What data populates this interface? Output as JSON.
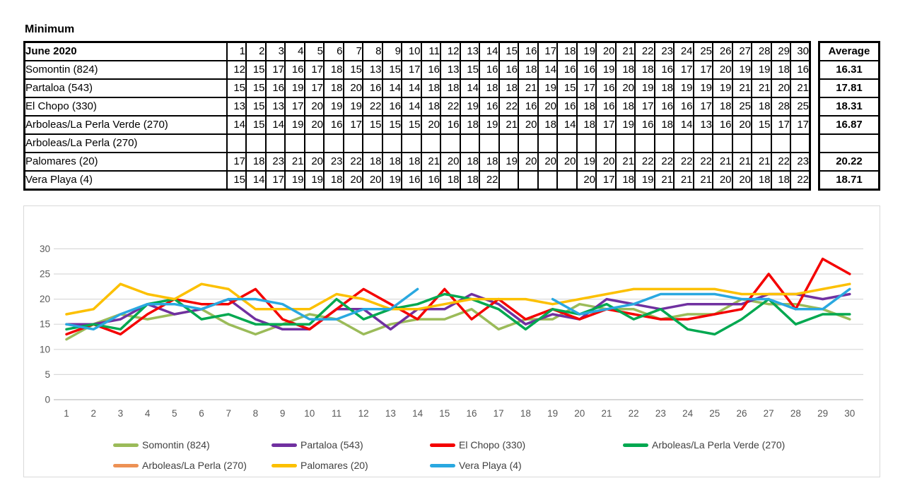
{
  "title": "Minimum",
  "table": {
    "corner_label": "June 2020",
    "day_headers": [
      1,
      2,
      3,
      4,
      5,
      6,
      7,
      8,
      9,
      10,
      11,
      12,
      13,
      14,
      15,
      16,
      17,
      18,
      19,
      20,
      21,
      22,
      23,
      24,
      25,
      26,
      27,
      28,
      29,
      30
    ],
    "average_header": "Average",
    "rows": [
      {
        "name": "Somontin (824)",
        "values": [
          12,
          15,
          17,
          16,
          17,
          18,
          15,
          13,
          15,
          17,
          16,
          13,
          15,
          16,
          16,
          18,
          14,
          16,
          16,
          19,
          18,
          18,
          16,
          17,
          17,
          20,
          19,
          19,
          18,
          16
        ],
        "average": "16.31"
      },
      {
        "name": "Partaloa (543)",
        "values": [
          15,
          15,
          16,
          19,
          17,
          18,
          20,
          16,
          14,
          14,
          18,
          18,
          14,
          18,
          18,
          21,
          19,
          15,
          17,
          16,
          20,
          19,
          18,
          19,
          19,
          19,
          21,
          21,
          20,
          21
        ],
        "average": "17.81"
      },
      {
        "name": "El Chopo (330)",
        "values": [
          13,
          15,
          13,
          17,
          20,
          19,
          19,
          22,
          16,
          14,
          18,
          22,
          19,
          16,
          22,
          16,
          20,
          16,
          18,
          16,
          18,
          17,
          16,
          16,
          17,
          18,
          25,
          18,
          28,
          25
        ],
        "average": "18.31"
      },
      {
        "name": "Arboleas/La Perla Verde (270)",
        "values": [
          14,
          15,
          14,
          19,
          20,
          16,
          17,
          15,
          15,
          15,
          20,
          16,
          18,
          19,
          21,
          20,
          18,
          14,
          18,
          17,
          19,
          16,
          18,
          14,
          13,
          16,
          20,
          15,
          17,
          17
        ],
        "average": "16.87"
      },
      {
        "name": "Arboleas/La Perla (270)",
        "values": [
          null,
          null,
          null,
          null,
          null,
          null,
          null,
          null,
          null,
          null,
          null,
          null,
          null,
          null,
          null,
          null,
          null,
          null,
          null,
          null,
          null,
          null,
          null,
          null,
          null,
          null,
          null,
          null,
          null,
          null
        ],
        "average": null
      },
      {
        "name": "Palomares (20)",
        "values": [
          17,
          18,
          23,
          21,
          20,
          23,
          22,
          18,
          18,
          18,
          21,
          20,
          18,
          18,
          19,
          20,
          20,
          20,
          19,
          20,
          21,
          22,
          22,
          22,
          22,
          21,
          21,
          21,
          22,
          23
        ],
        "average": "20.22"
      },
      {
        "name": "Vera Playa (4)",
        "values": [
          15,
          14,
          17,
          19,
          19,
          18,
          20,
          20,
          19,
          16,
          16,
          18,
          18,
          22,
          null,
          null,
          null,
          null,
          20,
          17,
          18,
          19,
          21,
          21,
          21,
          20,
          20,
          18,
          18,
          22
        ],
        "average": "18.71"
      }
    ]
  },
  "colors": {
    "header_fill": "#FBE3D4",
    "empty_cell_fill": "#D9D9D9",
    "grid_line": "#D9D9D9",
    "zero_line": "#BFBFBF",
    "axis_text": "#595959",
    "legend_text": "#404040"
  },
  "chart_data": {
    "type": "line",
    "title": "",
    "xlabel": "",
    "ylabel": "",
    "x": [
      1,
      2,
      3,
      4,
      5,
      6,
      7,
      8,
      9,
      10,
      11,
      12,
      13,
      14,
      15,
      16,
      17,
      18,
      19,
      20,
      21,
      22,
      23,
      24,
      25,
      26,
      27,
      28,
      29,
      30
    ],
    "ylim": [
      0,
      30
    ],
    "yticks": [
      0,
      5,
      10,
      15,
      20,
      25,
      30
    ],
    "grid": true,
    "legend_position": "bottom",
    "series": [
      {
        "name": "Somontin (824)",
        "color": "#9BBB59",
        "values": [
          12,
          15,
          17,
          16,
          17,
          18,
          15,
          13,
          15,
          17,
          16,
          13,
          15,
          16,
          16,
          18,
          14,
          16,
          16,
          19,
          18,
          18,
          16,
          17,
          17,
          20,
          19,
          19,
          18,
          16
        ]
      },
      {
        "name": "Partaloa (543)",
        "color": "#7030A0",
        "values": [
          15,
          15,
          16,
          19,
          17,
          18,
          20,
          16,
          14,
          14,
          18,
          18,
          14,
          18,
          18,
          21,
          19,
          15,
          17,
          16,
          20,
          19,
          18,
          19,
          19,
          19,
          21,
          21,
          20,
          21
        ]
      },
      {
        "name": "El Chopo (330)",
        "color": "#F40000",
        "values": [
          13,
          15,
          13,
          17,
          20,
          19,
          19,
          22,
          16,
          14,
          18,
          22,
          19,
          16,
          22,
          16,
          20,
          16,
          18,
          16,
          18,
          17,
          16,
          16,
          17,
          18,
          25,
          18,
          28,
          25
        ]
      },
      {
        "name": "Arboleas/La Perla Verde (270)",
        "color": "#00A850",
        "values": [
          14,
          15,
          14,
          19,
          20,
          16,
          17,
          15,
          15,
          15,
          20,
          16,
          18,
          19,
          21,
          20,
          18,
          14,
          18,
          17,
          19,
          16,
          18,
          14,
          13,
          16,
          20,
          15,
          17,
          17
        ]
      },
      {
        "name": "Arboleas/La Perla (270)",
        "color": "#ED9154",
        "values": [
          null,
          null,
          null,
          null,
          null,
          null,
          null,
          null,
          null,
          null,
          null,
          null,
          null,
          null,
          null,
          null,
          null,
          null,
          null,
          null,
          null,
          null,
          null,
          null,
          null,
          null,
          null,
          null,
          null,
          null
        ]
      },
      {
        "name": "Palomares (20)",
        "color": "#FCC000",
        "values": [
          17,
          18,
          23,
          21,
          20,
          23,
          22,
          18,
          18,
          18,
          21,
          20,
          18,
          18,
          19,
          20,
          20,
          20,
          19,
          20,
          21,
          22,
          22,
          22,
          22,
          21,
          21,
          21,
          22,
          23
        ]
      },
      {
        "name": "Vera Playa (4)",
        "color": "#29A8E0",
        "values": [
          15,
          14,
          17,
          19,
          19,
          18,
          20,
          20,
          19,
          16,
          16,
          18,
          18,
          22,
          null,
          null,
          null,
          null,
          20,
          17,
          18,
          19,
          21,
          21,
          21,
          20,
          20,
          18,
          18,
          22
        ]
      }
    ]
  }
}
